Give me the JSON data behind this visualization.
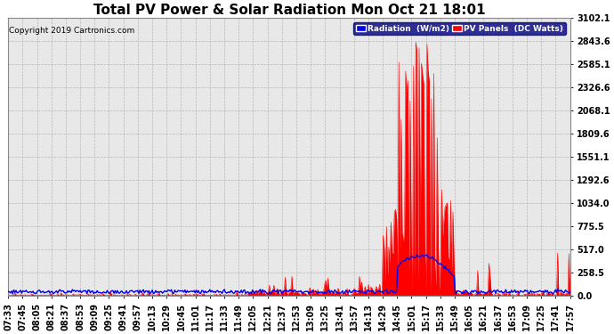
{
  "title": "Total PV Power & Solar Radiation Mon Oct 21 18:01",
  "copyright": "Copyright 2019 Cartronics.com",
  "legend_radiation": "Radiation  (W/m2)",
  "legend_pv": "PV Panels  (DC Watts)",
  "yticks": [
    0.0,
    258.5,
    517.0,
    775.5,
    1034.0,
    1292.6,
    1551.1,
    1809.6,
    2068.1,
    2326.6,
    2585.1,
    2843.6,
    3102.1
  ],
  "ymax": 3102.1,
  "bg_color": "#ffffff",
  "plot_bg_color": "#e8e8e8",
  "grid_color": "#aaaaaa",
  "radiation_color": "#0000ee",
  "pv_color": "#ff0000",
  "title_fontsize": 11,
  "tick_fontsize": 7,
  "n_points": 500,
  "xtick_labels": [
    "07:33",
    "07:45",
    "08:05",
    "08:21",
    "08:37",
    "08:53",
    "09:09",
    "09:25",
    "09:41",
    "09:57",
    "10:13",
    "10:29",
    "10:45",
    "11:01",
    "11:17",
    "11:33",
    "11:49",
    "12:05",
    "12:21",
    "12:37",
    "12:53",
    "13:09",
    "13:25",
    "13:41",
    "13:57",
    "14:13",
    "14:29",
    "14:45",
    "15:01",
    "15:17",
    "15:33",
    "15:49",
    "16:05",
    "16:21",
    "16:37",
    "16:53",
    "17:09",
    "17:25",
    "17:41",
    "17:57"
  ]
}
